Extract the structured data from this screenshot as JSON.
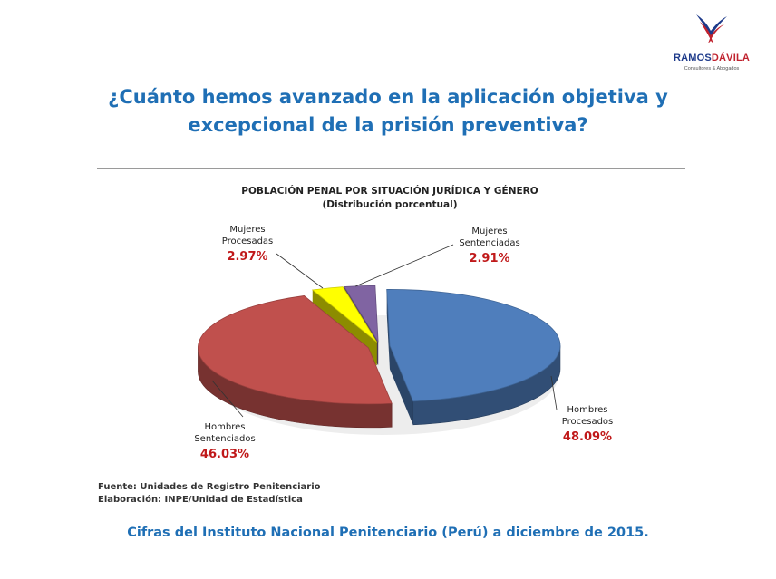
{
  "logo": {
    "brand_part1": "RAMOS",
    "brand_part2": "DÁVILA",
    "tagline": "Consultores & Abogados",
    "colors": {
      "navy": "#1d3a8a",
      "red": "#c0222e"
    }
  },
  "headline": {
    "line1": "¿Cuánto hemos avanzado en la aplicación objetiva y",
    "line2": "excepcional de la prisión preventiva?"
  },
  "chart_data": {
    "type": "pie",
    "title": "POBLACIÓN PENAL POR SITUACIÓN JURÍDICA Y GÉNERO",
    "subtitle": "(Distribución porcentual)",
    "slices": [
      {
        "label_line1": "Hombres",
        "label_line2": "Procesados",
        "value": 48.09,
        "display": "48.09%",
        "color": "#4f7ebc"
      },
      {
        "label_line1": "Hombres",
        "label_line2": "Sentenciados",
        "value": 46.03,
        "display": "46.03%",
        "color": "#c0504d"
      },
      {
        "label_line1": "Mujeres",
        "label_line2": "Procesadas",
        "value": 2.97,
        "display": "2.97%",
        "color": "#ffff00"
      },
      {
        "label_line1": "Mujeres",
        "label_line2": "Sentenciadas",
        "value": 2.91,
        "display": "2.91%",
        "color": "#8064a2"
      }
    ],
    "style": "3d-exploded",
    "label_color": "#c0191a"
  },
  "source": {
    "line1": "Fuente: Unidades de Registro Penitenciario",
    "line2": "Elaboración: INPE/Unidad de Estadística"
  },
  "footer": "Cifras del Instituto Nacional Penitenciario (Perú) a diciembre de 2015.",
  "colors": {
    "headline": "#1f6fb5",
    "rule": "#9a9a9a"
  }
}
